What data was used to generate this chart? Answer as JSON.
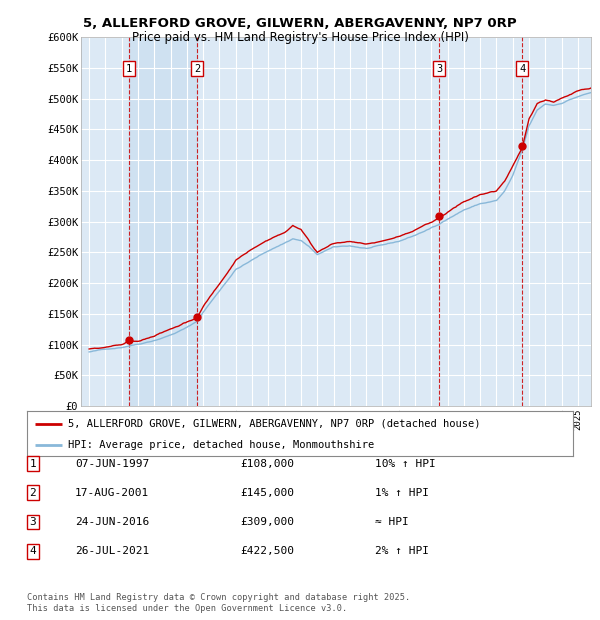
{
  "title_line1": "5, ALLERFORD GROVE, GILWERN, ABERGAVENNY, NP7 0RP",
  "title_line2": "Price paid vs. HM Land Registry's House Price Index (HPI)",
  "ylabel_ticks": [
    "£0",
    "£50K",
    "£100K",
    "£150K",
    "£200K",
    "£250K",
    "£300K",
    "£350K",
    "£400K",
    "£450K",
    "£500K",
    "£550K",
    "£600K"
  ],
  "ytick_values": [
    0,
    50000,
    100000,
    150000,
    200000,
    250000,
    300000,
    350000,
    400000,
    450000,
    500000,
    550000,
    600000
  ],
  "xlim": [
    1994.5,
    2025.8
  ],
  "ylim": [
    0,
    600000
  ],
  "bg_color": "#dce9f5",
  "legend_line1": "5, ALLERFORD GROVE, GILWERN, ABERGAVENNY, NP7 0RP (detached house)",
  "legend_line2": "HPI: Average price, detached house, Monmouthshire",
  "table_rows": [
    {
      "num": 1,
      "date": "07-JUN-1997",
      "price": "£108,000",
      "hpi": "10% ↑ HPI"
    },
    {
      "num": 2,
      "date": "17-AUG-2001",
      "price": "£145,000",
      "hpi": "1% ↑ HPI"
    },
    {
      "num": 3,
      "date": "24-JUN-2016",
      "price": "£309,000",
      "hpi": "≈ HPI"
    },
    {
      "num": 4,
      "date": "26-JUL-2021",
      "price": "£422,500",
      "hpi": "2% ↑ HPI"
    }
  ],
  "footer_text": "Contains HM Land Registry data © Crown copyright and database right 2025.\nThis data is licensed under the Open Government Licence v3.0.",
  "sale_years": [
    1997.44,
    2001.63,
    2016.48,
    2021.57
  ],
  "sale_prices": [
    108000,
    145000,
    309000,
    422500
  ],
  "dashed_line_color": "#cc0000",
  "red_line_color": "#cc0000",
  "blue_line_color": "#89b8d9",
  "shade_color": "#d0e3f0"
}
